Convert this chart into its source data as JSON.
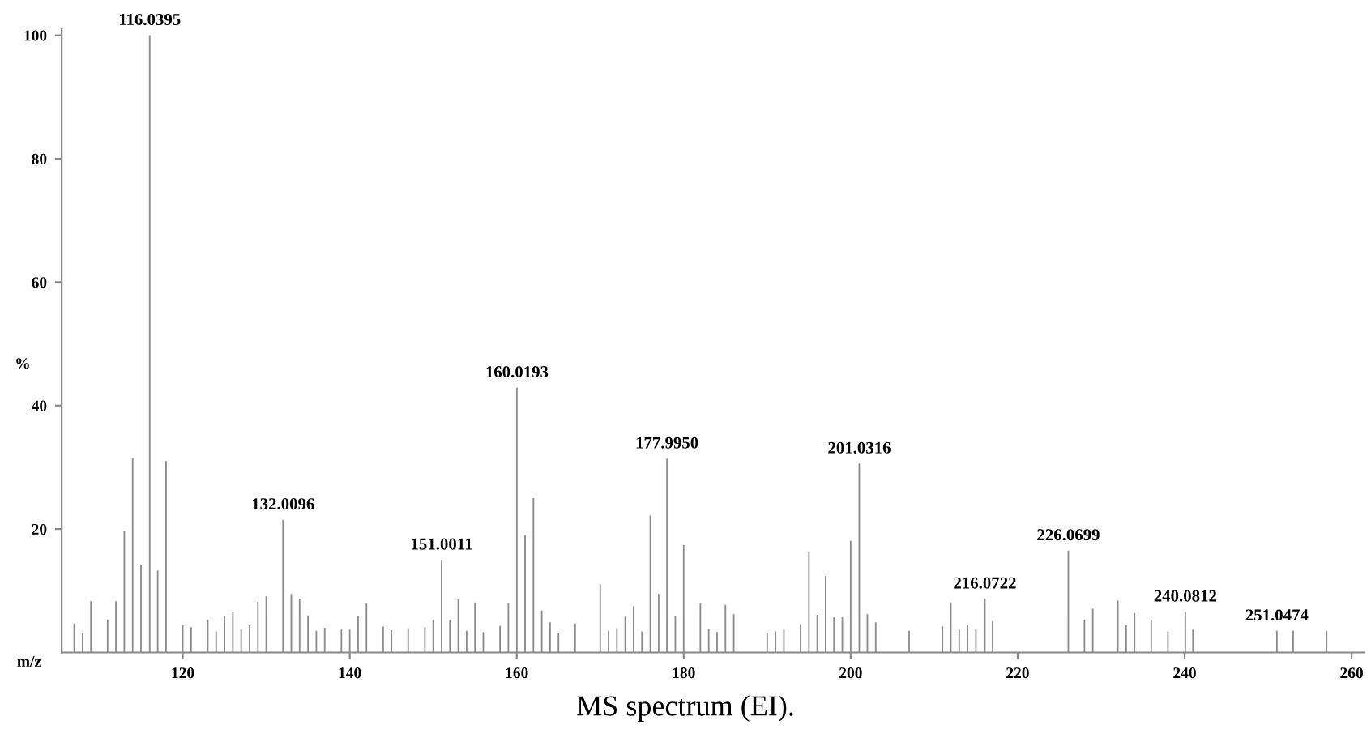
{
  "chart_data": {
    "type": "bar",
    "xlabel": "m/z",
    "ylabel": "%",
    "annotations": [
      "MS spectrum (EI).",
      {
        "text": "116.0395",
        "x": 116.0395,
        "y": 100
      },
      {
        "text": "132.0096",
        "x": 132.0096,
        "y": 21.5
      },
      {
        "text": "151.0011",
        "x": 151.0011,
        "y": 15
      },
      {
        "text": "160.0193",
        "x": 160.0193,
        "y": 42.9
      },
      {
        "text": "177.9950",
        "x": 177.995,
        "y": 31.4
      },
      {
        "text": "201.0316",
        "x": 201.0316,
        "y": 30.6
      },
      {
        "text": "216.0722",
        "x": 216.0722,
        "y": 8.7
      },
      {
        "text": "226.0699",
        "x": 226.0699,
        "y": 16.5
      },
      {
        "text": "240.0812",
        "x": 240.0812,
        "y": 6.6
      },
      {
        "text": "251.0474",
        "x": 251.0474,
        "y": 3.5
      }
    ],
    "x": [
      107,
      108,
      109,
      111,
      112,
      113,
      114,
      115,
      116.0395,
      117,
      118,
      120,
      121,
      123,
      124,
      125,
      126,
      127,
      128,
      129,
      130,
      132.0096,
      133,
      134,
      135,
      136,
      137,
      139,
      140,
      141,
      142,
      144,
      145,
      147,
      149,
      150,
      151.0011,
      152,
      153,
      154,
      155,
      156,
      158,
      159,
      160.0193,
      161,
      162,
      163,
      164,
      165,
      167,
      170,
      171,
      172,
      173,
      174,
      175,
      176,
      177,
      177.995,
      179,
      180,
      182,
      183,
      184,
      185,
      186,
      190,
      191,
      192,
      194,
      195,
      196,
      197,
      198,
      199,
      200,
      201.0316,
      202,
      203,
      207,
      211,
      212,
      213,
      214,
      215,
      216.0722,
      217,
      226.0699,
      228,
      229,
      232,
      233,
      234,
      236,
      238,
      240.0812,
      241,
      251.0474,
      253,
      257
    ],
    "values": [
      4.7,
      3.1,
      8.3,
      5.3,
      8.3,
      19.7,
      31.5,
      14.2,
      100,
      13.3,
      31,
      4.4,
      4.1,
      5.3,
      3.4,
      5.9,
      6.6,
      3.7,
      4.4,
      8.2,
      9.1,
      21.5,
      9.5,
      8.7,
      6,
      3.5,
      4,
      3.7,
      3.7,
      5.9,
      8,
      4.2,
      3.6,
      3.9,
      4.1,
      5.3,
      15,
      5.3,
      8.6,
      3.5,
      8.1,
      3.3,
      4.3,
      8,
      42.9,
      19,
      25,
      6.8,
      4.9,
      3.1,
      4.7,
      11,
      3.5,
      3.9,
      5.8,
      7.5,
      3.4,
      22.2,
      9.5,
      31.4,
      5.9,
      17.4,
      8,
      3.8,
      3.3,
      7.7,
      6.2,
      3.1,
      3.4,
      3.7,
      4.6,
      16.2,
      6.1,
      12.4,
      5.7,
      5.7,
      18.1,
      30.6,
      6.2,
      4.9,
      3.5,
      4.2,
      8.1,
      3.7,
      4.4,
      3.7,
      8.7,
      5.1,
      16.5,
      5.3,
      7.1,
      8.4,
      4.4,
      6.4,
      5.3,
      3.4,
      6.6,
      3.7,
      3.5,
      3.5,
      3.5
    ],
    "color": "#8c8c8c",
    "xlim": [
      105.5,
      261.5
    ],
    "xticks": [
      120,
      140,
      160,
      180,
      200,
      220,
      240,
      260
    ],
    "ylim": [
      0,
      101
    ],
    "yticks": [
      20,
      40,
      60,
      80,
      100
    ]
  }
}
